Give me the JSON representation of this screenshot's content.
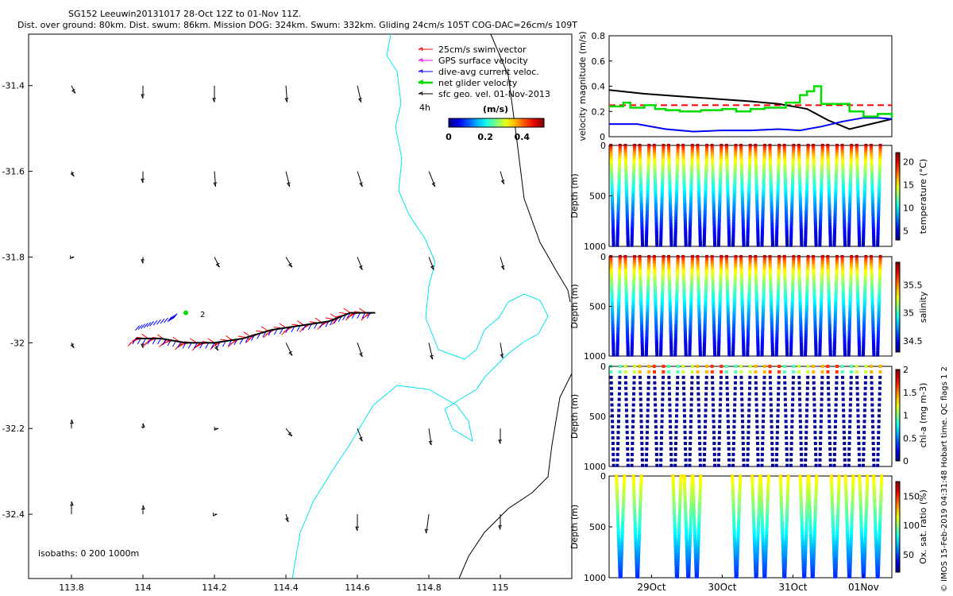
{
  "header": {
    "line1": "SG152 Leeuwin20131017 28-Oct 12Z to 01-Nov 11Z.",
    "line2": "Dist. over ground: 80km. Dist. swum: 86km. Mission DOG: 324km. Swum: 332km. Gliding 24cm/s 105T COG-DAC=26cm/s 109T"
  },
  "credit": "© IMOS 15-Feb-2019 04:31:48 Hobart time. QC flags 1  2",
  "colors": {
    "swim": "#ff0000",
    "gps": "#ff00ff",
    "dac": "#0000ff",
    "netglider": "#00dd00",
    "sfcgeo": "#000000",
    "coast": "#00e5ee",
    "isobath": "#000000"
  },
  "chart_data": [
    {
      "type": "scatter",
      "title": "",
      "xlabel": "",
      "ylabel": "",
      "xlim": [
        113.68,
        115.2
      ],
      "ylim": [
        -32.55,
        -31.28
      ],
      "xticks": [
        113.8,
        114,
        114.2,
        114.4,
        114.6,
        114.8,
        115
      ],
      "yticks": [
        -32.4,
        -32.2,
        -32,
        -31.8,
        -31.6,
        -31.4
      ],
      "xtick_labels": [
        "113.8",
        "114",
        "114.2",
        "114.4",
        "114.6",
        "114.8",
        "115"
      ],
      "ytick_labels": [
        "-32.4",
        "-32.2",
        "-32",
        "-31.8",
        "-31.6",
        "-31.4"
      ],
      "legend": [
        {
          "label": "25cm/s swim vector",
          "color": "#ff0000"
        },
        {
          "label": "GPS surface velocity",
          "color": "#ff00ff"
        },
        {
          "label": "dive-avg current veloc.",
          "color": "#0000ff"
        },
        {
          "label": "net glider velocity",
          "color": "#00dd00"
        },
        {
          "label": "sfc geo. vel. 01-Nov-2013",
          "color": "#000000"
        }
      ],
      "legend_position": "top-right",
      "hour_label": "4h",
      "colorbar": {
        "title": "(m/s)",
        "ticks": [
          "0",
          "0.2",
          "0.4"
        ],
        "range": [
          0,
          0.52
        ]
      },
      "track_label": "2",
      "isobath_note": "isobaths: 0   200  1000m",
      "track": [
        [
          113.98,
          -31.99
        ],
        [
          114.05,
          -31.99
        ],
        [
          114.12,
          -32.0
        ],
        [
          114.2,
          -32.0
        ],
        [
          114.28,
          -31.99
        ],
        [
          114.36,
          -31.97
        ],
        [
          114.44,
          -31.96
        ],
        [
          114.52,
          -31.95
        ],
        [
          114.58,
          -31.93
        ],
        [
          114.65,
          -31.93
        ]
      ],
      "dac_track": [
        [
          113.99,
          -31.96
        ],
        [
          114.03,
          -31.95
        ],
        [
          114.08,
          -31.94
        ],
        [
          114.1,
          -31.93
        ]
      ],
      "geo_vectors": [
        {
          "lon": 113.8,
          "lat": -31.4,
          "u": 0.03,
          "v": -0.06
        },
        {
          "lon": 114.0,
          "lat": -31.4,
          "u": 0.0,
          "v": -0.1
        },
        {
          "lon": 114.2,
          "lat": -31.4,
          "u": 0.0,
          "v": -0.13
        },
        {
          "lon": 114.4,
          "lat": -31.4,
          "u": 0.01,
          "v": -0.13
        },
        {
          "lon": 114.6,
          "lat": -31.4,
          "u": 0.03,
          "v": -0.13
        },
        {
          "lon": 113.8,
          "lat": -31.6,
          "u": 0.02,
          "v": -0.04
        },
        {
          "lon": 114.0,
          "lat": -31.6,
          "u": 0.0,
          "v": -0.09
        },
        {
          "lon": 114.2,
          "lat": -31.6,
          "u": 0.01,
          "v": -0.12
        },
        {
          "lon": 114.4,
          "lat": -31.6,
          "u": 0.03,
          "v": -0.12
        },
        {
          "lon": 114.6,
          "lat": -31.6,
          "u": 0.04,
          "v": -0.12
        },
        {
          "lon": 114.8,
          "lat": -31.6,
          "u": 0.05,
          "v": -0.12
        },
        {
          "lon": 115.0,
          "lat": -31.6,
          "u": 0.03,
          "v": -0.1
        },
        {
          "lon": 113.8,
          "lat": -31.8,
          "u": 0.02,
          "v": 0.0
        },
        {
          "lon": 114.0,
          "lat": -31.8,
          "u": 0.0,
          "v": -0.05
        },
        {
          "lon": 114.2,
          "lat": -31.8,
          "u": 0.04,
          "v": -0.08
        },
        {
          "lon": 114.4,
          "lat": -31.8,
          "u": 0.05,
          "v": -0.08
        },
        {
          "lon": 114.6,
          "lat": -31.8,
          "u": 0.04,
          "v": -0.1
        },
        {
          "lon": 114.8,
          "lat": -31.8,
          "u": 0.04,
          "v": -0.1
        },
        {
          "lon": 115.0,
          "lat": -31.8,
          "u": 0.03,
          "v": -0.1
        },
        {
          "lon": 113.8,
          "lat": -32.0,
          "u": 0.02,
          "v": -0.04
        },
        {
          "lon": 114.0,
          "lat": -32.0,
          "u": 0.0,
          "v": -0.04
        },
        {
          "lon": 114.2,
          "lat": -32.0,
          "u": 0.03,
          "v": -0.06
        },
        {
          "lon": 114.4,
          "lat": -32.0,
          "u": 0.05,
          "v": -0.1
        },
        {
          "lon": 114.6,
          "lat": -32.0,
          "u": 0.04,
          "v": -0.11
        },
        {
          "lon": 114.8,
          "lat": -32.0,
          "u": 0.03,
          "v": -0.13
        },
        {
          "lon": 115.0,
          "lat": -32.0,
          "u": 0.02,
          "v": -0.12
        },
        {
          "lon": 113.8,
          "lat": -32.2,
          "u": 0.0,
          "v": 0.07
        },
        {
          "lon": 114.0,
          "lat": -32.2,
          "u": 0.0,
          "v": 0.04
        },
        {
          "lon": 114.2,
          "lat": -32.2,
          "u": 0.03,
          "v": 0.0
        },
        {
          "lon": 114.4,
          "lat": -32.2,
          "u": 0.05,
          "v": -0.06
        },
        {
          "lon": 114.6,
          "lat": -32.2,
          "u": 0.04,
          "v": -0.1
        },
        {
          "lon": 114.8,
          "lat": -32.2,
          "u": 0.02,
          "v": -0.13
        },
        {
          "lon": 115.0,
          "lat": -32.2,
          "u": 0.0,
          "v": -0.12
        },
        {
          "lon": 113.8,
          "lat": -32.4,
          "u": 0.0,
          "v": 0.1
        },
        {
          "lon": 114.0,
          "lat": -32.4,
          "u": 0.0,
          "v": 0.07
        },
        {
          "lon": 114.2,
          "lat": -32.4,
          "u": 0.02,
          "v": 0.0
        },
        {
          "lon": 114.4,
          "lat": -32.4,
          "u": 0.02,
          "v": -0.06
        },
        {
          "lon": 114.6,
          "lat": -32.4,
          "u": 0.0,
          "v": -0.13
        },
        {
          "lon": 114.8,
          "lat": -32.4,
          "u": -0.02,
          "v": -0.15
        },
        {
          "lon": 115.0,
          "lat": -32.4,
          "u": 0.0,
          "v": -0.12
        }
      ]
    },
    {
      "type": "line",
      "ylabel": "velocity magnitude (m/s)",
      "ylim": [
        0,
        0.8
      ],
      "yticks": [
        0,
        0.2,
        0.4,
        0.6,
        0.8
      ],
      "ytick_labels": [
        "0",
        "0.2",
        "0.4",
        "0.6",
        "0.8"
      ],
      "xlim": [
        0,
        4
      ],
      "series": [
        {
          "color": "#ff0000",
          "dashed": true,
          "x": [
            0,
            4
          ],
          "y": [
            0.25,
            0.25
          ]
        },
        {
          "color": "#000000",
          "x": [
            0,
            0.5,
            1,
            1.5,
            2,
            2.4,
            2.8,
            3.1,
            3.4,
            3.7,
            4
          ],
          "y": [
            0.37,
            0.34,
            0.32,
            0.3,
            0.28,
            0.26,
            0.22,
            0.13,
            0.06,
            0.1,
            0.14
          ]
        },
        {
          "color": "#0000ff",
          "x": [
            0,
            0.4,
            0.8,
            1.2,
            1.6,
            2.0,
            2.4,
            2.7,
            3.0,
            3.3,
            3.6,
            3.8,
            4.0
          ],
          "y": [
            0.1,
            0.1,
            0.06,
            0.04,
            0.05,
            0.05,
            0.06,
            0.05,
            0.08,
            0.12,
            0.15,
            0.15,
            0.14
          ]
        },
        {
          "color": "#00dd00",
          "x": [
            0,
            0.2,
            0.3,
            0.5,
            0.65,
            0.8,
            1.0,
            1.3,
            1.6,
            1.8,
            2.0,
            2.2,
            2.5,
            2.7,
            2.8,
            2.9,
            3.0,
            3.2,
            3.4,
            3.6,
            3.8,
            4.0
          ],
          "y": [
            0.24,
            0.27,
            0.23,
            0.25,
            0.22,
            0.21,
            0.2,
            0.21,
            0.22,
            0.2,
            0.22,
            0.23,
            0.27,
            0.33,
            0.36,
            0.4,
            0.26,
            0.26,
            0.2,
            0.16,
            0.18,
            0.15
          ]
        }
      ]
    },
    {
      "type": "scatter",
      "ylabel": "Depth (m)",
      "variable": "temperature",
      "colorbar_label": "temperature (°C)",
      "colorbar_ticks": [
        "5",
        "10",
        "15",
        "20"
      ],
      "colorbar_range": [
        3,
        22
      ],
      "surface_value": 21,
      "bottom_value": 4,
      "dives": 19,
      "yticks": [
        0,
        500,
        1000
      ],
      "ytick_labels": [
        "0",
        "500",
        "1000"
      ]
    },
    {
      "type": "scatter",
      "ylabel": "Depth (m)",
      "variable": "salinity",
      "colorbar_label": "salinity",
      "colorbar_ticks": [
        "34.5",
        "35",
        "35.5"
      ],
      "colorbar_range": [
        34.3,
        35.9
      ],
      "surface_value": 35.8,
      "bottom_value": 34.4,
      "dives": 19,
      "yticks": [
        0,
        500,
        1000
      ],
      "ytick_labels": [
        "0",
        "500",
        "1000"
      ]
    },
    {
      "type": "scatter",
      "ylabel": "Depth (m)",
      "variable": "chl-a",
      "colorbar_label": "chl-a (mg m-3)",
      "colorbar_ticks": [
        "0",
        "0.5",
        "1",
        "1.5",
        "2"
      ],
      "colorbar_range": [
        0,
        2
      ],
      "dives": 19,
      "yticks": [
        0,
        500,
        1000
      ],
      "ytick_labels": [
        "0",
        "500",
        "1000"
      ]
    },
    {
      "type": "scatter",
      "ylabel": "Depth (m)",
      "variable": "oxygen saturation",
      "colorbar_label": "Ox. sat. ratio (%)",
      "colorbar_ticks": [
        "50",
        "100",
        "150"
      ],
      "colorbar_range": [
        20,
        175
      ],
      "dive_positions": [
        0.04,
        0.1,
        0.24,
        0.28,
        0.31,
        0.45,
        0.52,
        0.55,
        0.62,
        0.69,
        0.72,
        0.8,
        0.85,
        0.9,
        0.95
      ],
      "xticks": [
        0.6,
        1.6,
        2.6,
        3.6
      ],
      "xtick_labels": [
        "29Oct",
        "30Oct",
        "31Oct",
        "01Nov"
      ],
      "yticks": [
        0,
        500,
        1000
      ],
      "ytick_labels": [
        "0",
        "500",
        "1000"
      ]
    }
  ]
}
